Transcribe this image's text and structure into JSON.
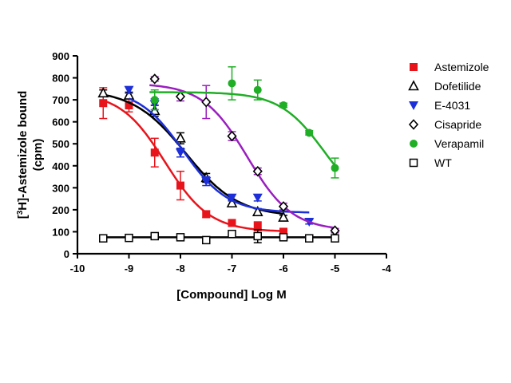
{
  "chart_data": {
    "type": "scatter",
    "xlabel": "[Compound] Log M",
    "ylabel_line1": "[3H]-Astemizole bound",
    "ylabel_prefix": "[",
    "ylabel_sup": "3",
    "ylabel_rest": "H]-Astemizole bound",
    "ylabel_line2": "(cpm)",
    "xlim": [
      -10,
      -4
    ],
    "ylim": [
      0,
      900
    ],
    "xticks": [
      -10,
      -9,
      -8,
      -7,
      -6,
      -5,
      -4
    ],
    "xtick_labels": [
      "-10",
      "-9",
      "-8",
      "-7",
      "-6",
      "-5",
      "-4"
    ],
    "yticks": [
      0,
      100,
      200,
      300,
      400,
      500,
      600,
      700,
      800,
      900
    ],
    "ytick_labels": [
      "0",
      "100",
      "200",
      "300",
      "400",
      "500",
      "600",
      "700",
      "800",
      "900"
    ],
    "legend_position": "right",
    "series": [
      {
        "name": "Astemizole",
        "color": "#e8141c",
        "marker": "square-filled",
        "x": [
          -9.5,
          -9.0,
          -8.5,
          -8.0,
          -7.5,
          -7.0,
          -6.5,
          -6.0
        ],
        "y": [
          685,
          675,
          460,
          310,
          180,
          140,
          125,
          100
        ],
        "err": [
          70,
          30,
          65,
          65,
          15,
          10,
          20,
          10
        ],
        "fit": {
          "top": 735,
          "bottom": 100,
          "logec50": -8.3,
          "hill": 1.0
        }
      },
      {
        "name": "Dofetilide",
        "color": "#000000",
        "marker": "triangle-up-open",
        "x": [
          -9.5,
          -9.0,
          -8.5,
          -8.0,
          -7.5,
          -7.0,
          -6.5,
          -6.0
        ],
        "y": [
          730,
          720,
          650,
          525,
          345,
          230,
          190,
          165
        ],
        "err": [
          15,
          15,
          25,
          25,
          20,
          15,
          15,
          10
        ],
        "fit": {
          "top": 748,
          "bottom": 168,
          "logec50": -7.9,
          "hill": 0.85
        }
      },
      {
        "name": "E-4031",
        "color": "#1c2fd8",
        "marker": "triangle-down-filled",
        "x": [
          -9.0,
          -8.5,
          -8.0,
          -7.5,
          -7.0,
          -6.5,
          -5.5
        ],
        "y": [
          745,
          680,
          460,
          330,
          255,
          255,
          145
        ],
        "err": [
          15,
          25,
          20,
          20,
          15,
          15,
          10
        ],
        "fit": {
          "top": 752,
          "bottom": 186,
          "logec50": -7.95,
          "hill": 1.0
        }
      },
      {
        "name": "Cisapride",
        "color": "#000000",
        "marker": "diamond-open",
        "x": [
          -8.5,
          -8.0,
          -7.5,
          -7.0,
          -6.5,
          -6.0,
          -5.0
        ],
        "y": [
          795,
          715,
          690,
          535,
          375,
          215,
          105
        ],
        "err": [
          10,
          20,
          75,
          20,
          15,
          15,
          10
        ],
        "fit": {
          "top": 775,
          "bottom": 105,
          "logec50": -6.7,
          "hill": 1.0,
          "color": "#9a1ec0",
          "x_start": -8.6
        }
      },
      {
        "name": "Verapamil",
        "color": "#1fae26",
        "marker": "circle-filled",
        "x": [
          -8.5,
          -7.0,
          -6.5,
          -6.0,
          -5.5,
          -5.0
        ],
        "y": [
          700,
          775,
          745,
          675,
          550,
          390
        ],
        "err": [
          45,
          75,
          45,
          10,
          10,
          45
        ],
        "fit": {
          "top": 735,
          "bottom": 190,
          "logec50": -5.2,
          "hill": 1.0,
          "x_start": -8.6
        }
      },
      {
        "name": "WT",
        "color": "#000000",
        "marker": "square-open",
        "x": [
          -9.5,
          -9.0,
          -8.5,
          -8.0,
          -7.5,
          -7.0,
          -6.5,
          -6.0,
          -5.5,
          -5.0
        ],
        "y": [
          70,
          72,
          80,
          75,
          62,
          90,
          80,
          75,
          70,
          70
        ],
        "err": [
          10,
          10,
          10,
          10,
          10,
          12,
          30,
          10,
          10,
          10
        ],
        "fit": {
          "type": "flat",
          "value": 75
        }
      }
    ]
  }
}
